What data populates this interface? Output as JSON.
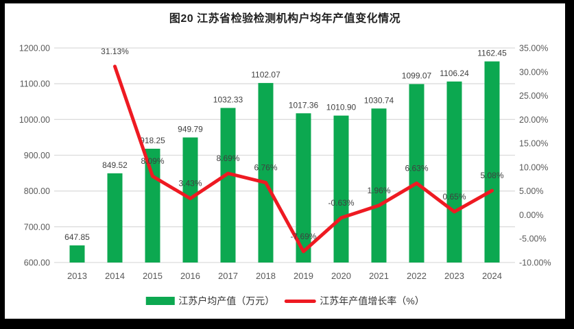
{
  "title": "图20  江苏省检验检测机构户均年产值变化情况",
  "legend": [
    {
      "label": "江苏户均产值（万元）",
      "swatch": "bar-swatch",
      "color": "#0CA850"
    },
    {
      "label": "江苏年产值增长率（%）",
      "swatch": "line-swatch",
      "color": "#EE1A22"
    }
  ],
  "chart_data": {
    "type": "combo",
    "title": "图20  江苏省检验检测机构户均年产值变化情况",
    "categories": [
      "2013",
      "2014",
      "2015",
      "2016",
      "2017",
      "2018",
      "2019",
      "2020",
      "2021",
      "2022",
      "2023",
      "2024"
    ],
    "series": [
      {
        "name": "江苏户均产值（万元）",
        "type": "bar",
        "axis": "left",
        "color": "#0CA850",
        "values": [
          647.85,
          849.52,
          918.25,
          949.79,
          1032.33,
          1102.07,
          1017.36,
          1010.9,
          1030.74,
          1099.07,
          1106.24,
          1162.45
        ],
        "labels": [
          "647.85",
          "849.52",
          "918.25",
          "949.79",
          "1032.33",
          "1102.07",
          "1017.36",
          "1010.90",
          "1030.74",
          "1099.07",
          "1106.24",
          "1162.45"
        ]
      },
      {
        "name": "江苏年产值增长率（%）",
        "type": "line",
        "axis": "right",
        "color": "#EE1A22",
        "values": [
          null,
          31.13,
          8.09,
          3.43,
          8.69,
          6.76,
          -7.69,
          -0.63,
          1.96,
          6.63,
          0.65,
          5.08
        ],
        "labels": [
          null,
          "31.13%",
          "8.09%",
          "3.43%",
          "8.69%",
          "6.76%",
          "-7.69%",
          "-0.63%",
          "1.96%",
          "6.63%",
          "0.65%",
          "5.08%"
        ]
      }
    ],
    "left_axis": {
      "min": 600,
      "max": 1200,
      "step": 100,
      "tick_labels": [
        "600.00",
        "700.00",
        "800.00",
        "900.00",
        "1000.00",
        "1100.00",
        "1200.00"
      ]
    },
    "right_axis": {
      "min": -10,
      "max": 35,
      "step": 5,
      "tick_labels": [
        "-10.00%",
        "-5.00%",
        "0.00%",
        "5.00%",
        "10.00%",
        "15.00%",
        "20.00%",
        "25.00%",
        "30.00%",
        "35.00%"
      ]
    },
    "grid": true,
    "legend_position": "bottom",
    "colors": {
      "grid": "#DCDCDC",
      "tick_text": "#595959",
      "data_label": "#3F3F3F",
      "title_text": "#1F1F1F",
      "background": "#FFFFFF",
      "frame": "#000000"
    }
  }
}
